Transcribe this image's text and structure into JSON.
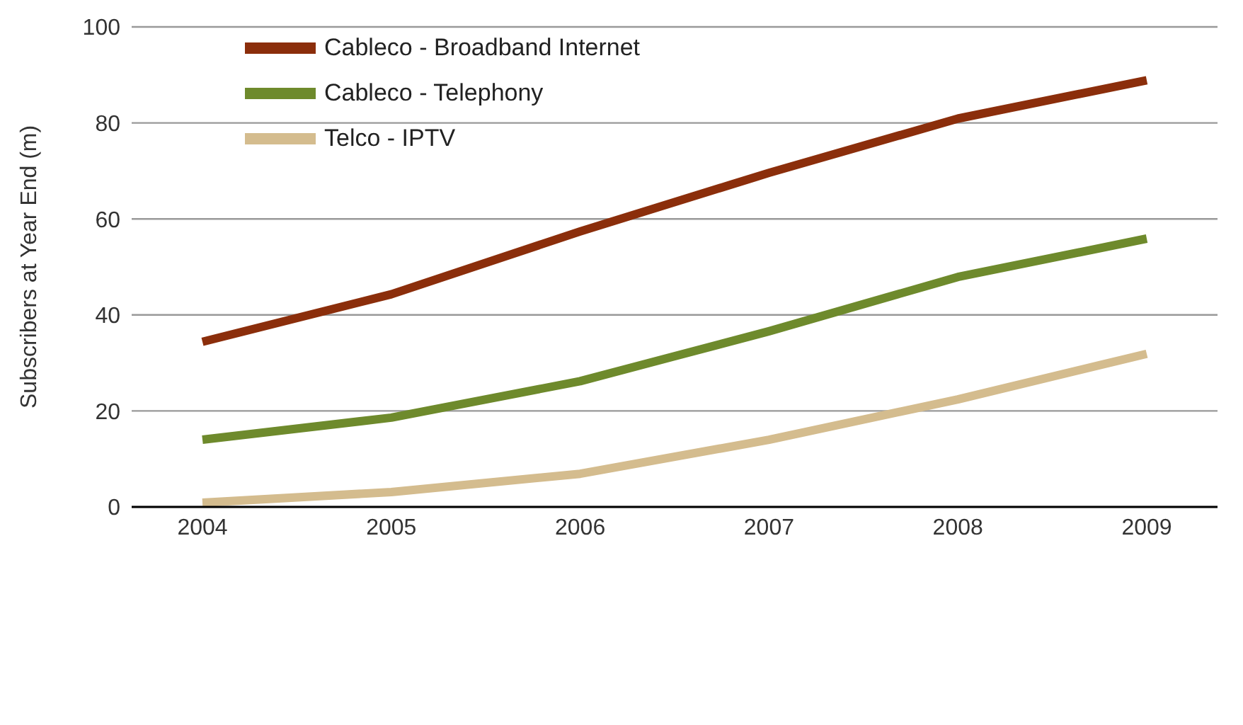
{
  "chart_data": {
    "type": "line",
    "ylabel": "Subscribers at Year End (m)",
    "categories": [
      "2004",
      "2005",
      "2006",
      "2007",
      "2008",
      "2009"
    ],
    "series": [
      {
        "name": "Cableco - Broadband Internet",
        "color": "#8b2e0b",
        "values": [
          34.4,
          44.3,
          57.4,
          69.6,
          80.9,
          88.9
        ]
      },
      {
        "name": "Cableco - Telephony",
        "color": "#6e8a2c",
        "values": [
          14,
          18.6,
          26.2,
          36.6,
          47.9,
          55.9
        ]
      },
      {
        "name": "Telco - IPTV",
        "color": "#d4bc8e",
        "values": [
          0.9,
          3.1,
          6.9,
          14,
          22.4,
          31.9
        ]
      }
    ],
    "ylim": [
      0,
      100
    ],
    "yticks": [
      0,
      20,
      40,
      60,
      80,
      100
    ],
    "grid": "y",
    "legend": "top left",
    "marker": "none",
    "line_style": "solid"
  }
}
